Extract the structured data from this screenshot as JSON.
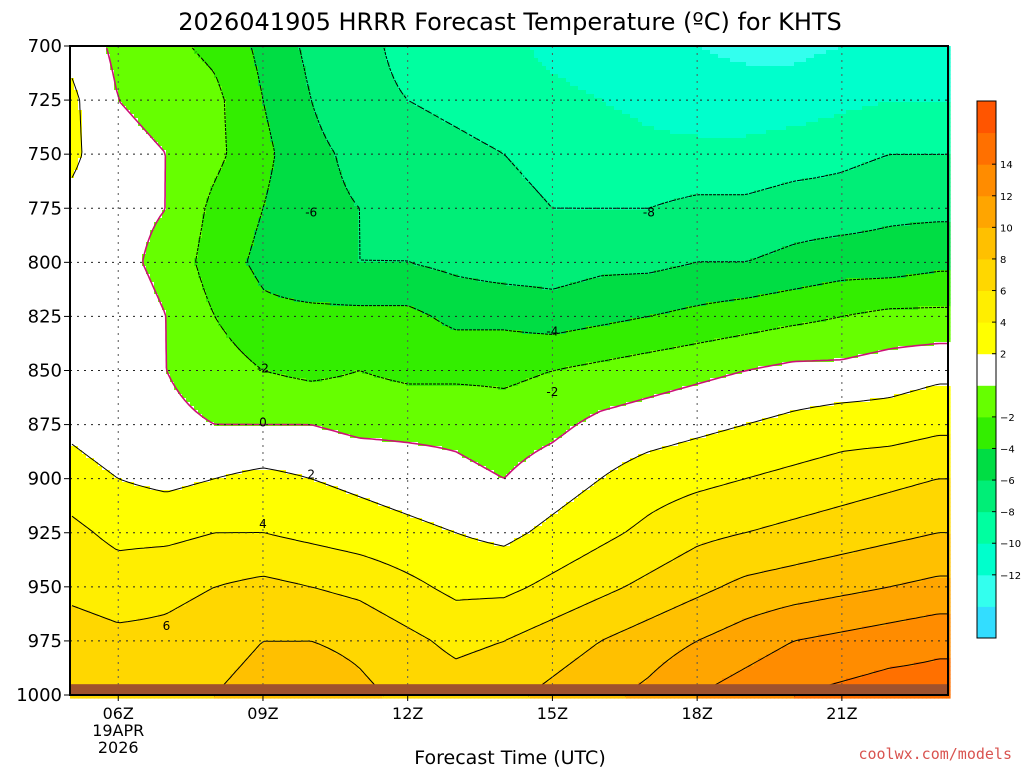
{
  "chart_data": {
    "type": "heatmap",
    "title": "2026041905 HRRR Forecast Temperature (ºC) for KHTS",
    "xlabel": "Forecast Time (UTC)",
    "credit": "coolwx.com/models",
    "x_hours": [
      5,
      6,
      7,
      8,
      9,
      10,
      11,
      12,
      13,
      14,
      15,
      16,
      17,
      18,
      19,
      20,
      21,
      22,
      23
    ],
    "x_ticks": [
      {
        "hour": 6,
        "label": "06Z",
        "sub1": "19APR",
        "sub2": "2026"
      },
      {
        "hour": 9,
        "label": "09Z"
      },
      {
        "hour": 12,
        "label": "12Z"
      },
      {
        "hour": 15,
        "label": "15Z"
      },
      {
        "hour": 18,
        "label": "18Z"
      },
      {
        "hour": 21,
        "label": "21Z"
      }
    ],
    "pressure_levels": [
      700,
      725,
      750,
      775,
      800,
      825,
      850,
      875,
      900,
      925,
      950,
      975,
      1000
    ],
    "y_ticks": [
      "700",
      "725",
      "750",
      "775",
      "800",
      "825",
      "850",
      "875",
      "900",
      "925",
      "950",
      "975",
      "1000"
    ],
    "ylim": [
      1000,
      700
    ],
    "x_range": [
      5,
      23.2
    ],
    "ground_level_hpa": 995,
    "temperature": [
      [
        1.5,
        -0.5,
        -1.5,
        -2.5,
        -4.5,
        -6.5,
        -7.5,
        -8.5,
        -9.0,
        -9.5,
        -10.5,
        -11.0,
        -11.5,
        -12.0,
        -12.5,
        -12.5,
        -12.0,
        -11.5,
        -11.5
      ],
      [
        2.5,
        0.0,
        -0.5,
        -1.5,
        -4.0,
        -6.0,
        -7.5,
        -8.0,
        -8.5,
        -9.0,
        -9.5,
        -10.0,
        -10.5,
        -11.0,
        -11.0,
        -11.0,
        -10.5,
        -10.0,
        -10.0
      ],
      [
        2.5,
        0.5,
        0.0,
        -1.5,
        -3.5,
        -5.5,
        -6.5,
        -7.0,
        -7.5,
        -8.0,
        -8.5,
        -9.0,
        -9.5,
        -9.5,
        -9.5,
        -9.0,
        -8.5,
        -8.0,
        -8.0
      ],
      [
        1.5,
        0.5,
        0.0,
        -2.5,
        -4.0,
        -5.5,
        -6.0,
        -6.5,
        -7.0,
        -7.5,
        -8.0,
        -8.0,
        -8.0,
        -7.5,
        -7.5,
        -7.0,
        -7.0,
        -6.5,
        -6.5
      ],
      [
        1.5,
        0.5,
        -0.5,
        -3.0,
        -4.5,
        -5.5,
        -6.0,
        -6.0,
        -6.5,
        -7.0,
        -7.0,
        -6.5,
        -6.5,
        -6.0,
        -6.0,
        -5.5,
        -5.0,
        -5.0,
        -4.5
      ],
      [
        1.5,
        1.0,
        0.0,
        -2.0,
        -3.5,
        -3.5,
        -3.5,
        -3.5,
        -4.5,
        -4.5,
        -5.0,
        -4.5,
        -4.0,
        -3.5,
        -3.0,
        -2.5,
        -2.0,
        -1.5,
        -1.5
      ],
      [
        1.5,
        1.0,
        0.0,
        -1.0,
        -2.0,
        -2.5,
        -2.0,
        -2.5,
        -2.5,
        -2.5,
        -2.0,
        -1.5,
        -1.0,
        -0.5,
        0.0,
        0.5,
        0.5,
        1.0,
        1.5
      ],
      [
        1.5,
        0.5,
        0.5,
        0.0,
        0.0,
        0.0,
        -0.5,
        -0.5,
        -0.5,
        -1.0,
        -0.5,
        0.5,
        1.0,
        1.5,
        2.0,
        2.5,
        3.0,
        3.0,
        3.5
      ],
      [
        3.0,
        2.0,
        1.5,
        2.0,
        2.5,
        2.0,
        1.5,
        1.0,
        0.5,
        0.0,
        1.0,
        2.0,
        3.0,
        3.5,
        4.0,
        4.5,
        5.0,
        5.5,
        6.0
      ],
      [
        4.5,
        3.5,
        3.5,
        4.0,
        4.0,
        3.5,
        3.0,
        2.5,
        2.0,
        1.5,
        2.5,
        3.5,
        4.5,
        5.5,
        6.0,
        6.5,
        7.0,
        7.5,
        8.0
      ],
      [
        5.5,
        5.0,
        5.5,
        6.0,
        6.5,
        6.0,
        5.5,
        4.5,
        3.5,
        3.5,
        4.5,
        5.5,
        6.5,
        7.5,
        8.5,
        9.0,
        9.5,
        10.0,
        10.5
      ],
      [
        7.0,
        6.5,
        6.5,
        7.0,
        8.0,
        8.0,
        7.5,
        6.5,
        5.5,
        6.0,
        7.0,
        8.0,
        9.0,
        10.0,
        11.0,
        12.0,
        12.5,
        13.0,
        13.5
      ],
      [
        8.0,
        7.5,
        7.5,
        8.0,
        9.0,
        9.5,
        8.5,
        7.5,
        7.0,
        7.5,
        8.5,
        9.5,
        10.5,
        12.0,
        13.0,
        14.0,
        14.5,
        15.0,
        15.0
      ]
    ],
    "contour_lines": [
      -8,
      -6,
      -4,
      -2,
      0,
      2,
      4,
      6,
      8,
      10,
      12,
      14
    ],
    "contour_labels": [
      {
        "text": "-6",
        "hour": 10.0,
        "p": 777
      },
      {
        "text": "-8",
        "hour": 17.0,
        "p": 777
      },
      {
        "text": "-4",
        "hour": 15.0,
        "p": 832
      },
      {
        "text": "-2",
        "hour": 9.0,
        "p": 849
      },
      {
        "text": "-2",
        "hour": 15.0,
        "p": 860
      },
      {
        "text": "0",
        "hour": 9.0,
        "p": 874
      },
      {
        "text": "2",
        "hour": 10.0,
        "p": 898
      },
      {
        "text": "4",
        "hour": 9.0,
        "p": 921
      },
      {
        "text": "6",
        "hour": 7.0,
        "p": 968
      }
    ],
    "colorbar": {
      "bounds": [
        -16,
        -14,
        -12,
        -10,
        -8,
        -6,
        -4,
        -2,
        0,
        2,
        4,
        6,
        8,
        10,
        12,
        14,
        16
      ],
      "colors": [
        "#33ddff",
        "#33ffee",
        "#00ffcc",
        "#00ffa0",
        "#00ee77",
        "#00dd44",
        "#33ee00",
        "#66ff00",
        "#ffffff",
        "#ffff00",
        "#ffee00",
        "#ffd700",
        "#ffc000",
        "#ffa500",
        "#ff8c00",
        "#ff7000",
        "#ff5500"
      ],
      "tick_labels": [
        "14",
        "12",
        "10",
        "8",
        "6",
        "4",
        "2",
        "−2",
        "−4",
        "−6",
        "−8",
        "−10",
        "−12"
      ],
      "tick_values": [
        14,
        12,
        10,
        8,
        6,
        4,
        2,
        -2,
        -4,
        -6,
        -8,
        -10,
        -12
      ]
    },
    "ground_color": "#a0522d",
    "freezing_line_color": "#cc1177"
  }
}
